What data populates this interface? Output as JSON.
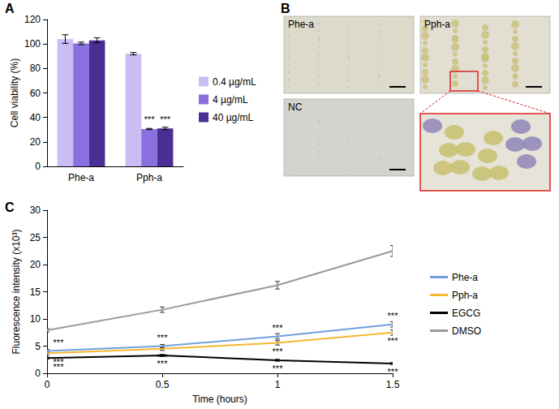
{
  "chart_data": [
    {
      "panel_label": "A",
      "type": "bar",
      "categories": [
        "Phe-a",
        "Pph-a"
      ],
      "y_label": "Cell viability (%)",
      "ylim": [
        0,
        120
      ],
      "yticks": [
        0,
        20,
        40,
        60,
        80,
        100,
        120
      ],
      "grid": false,
      "legend": "right",
      "series": [
        {
          "name": "0.4 µg/mL",
          "color": "#cbbcf3",
          "values": [
            104,
            92
          ],
          "errors": [
            3.5,
            1
          ],
          "significance": [
            null,
            null
          ]
        },
        {
          "name": "4 µg/mL",
          "color": "#8a6fe0",
          "values": [
            100.5,
            30.5
          ],
          "errors": [
            1,
            0.5
          ],
          "significance": [
            null,
            "***"
          ]
        },
        {
          "name": "40 µg/mL",
          "color": "#4a2e94",
          "values": [
            103,
            31
          ],
          "errors": [
            2,
            1
          ],
          "significance": [
            null,
            "***"
          ]
        }
      ]
    },
    {
      "panel_label": "C",
      "type": "line",
      "x_label": "Time (hours)",
      "y_label": "Fluorescence intensity (x10³)",
      "x": [
        0,
        0.5,
        1,
        1.5
      ],
      "xlim": [
        0,
        1.5
      ],
      "xticks": [
        0,
        0.5,
        1,
        1.5
      ],
      "ylim": [
        0,
        30
      ],
      "yticks": [
        0,
        5,
        10,
        15,
        20,
        25,
        30
      ],
      "grid": false,
      "legend": "right",
      "series": [
        {
          "name": "Phe-a",
          "color": "#6fa0dc",
          "values": [
            4.1,
            5.0,
            6.8,
            9.0
          ],
          "errors": [
            0.3,
            0.3,
            0.5,
            0.5
          ],
          "significance": [
            "***",
            "***",
            "***",
            "***"
          ]
        },
        {
          "name": "Pph-a",
          "color": "#f5b731",
          "values": [
            3.7,
            4.5,
            5.6,
            7.5
          ],
          "errors": [
            0.3,
            0.3,
            0.4,
            0.5
          ],
          "significance": [
            "***",
            "***",
            "***",
            "***"
          ]
        },
        {
          "name": "EGCG",
          "color": "#000000",
          "values": [
            2.8,
            3.3,
            2.4,
            1.8
          ],
          "errors": [
            0.2,
            0.2,
            0.2,
            0.2
          ],
          "significance": [
            "***",
            "***",
            "***",
            "***"
          ]
        },
        {
          "name": "DMSO",
          "color": "#999999",
          "values": [
            7.9,
            11.7,
            16.2,
            22.5
          ],
          "errors": [
            0.3,
            0.5,
            0.7,
            1.0
          ],
          "significance": [
            null,
            null,
            null,
            null
          ]
        }
      ]
    }
  ],
  "panel_b": {
    "panel_label": "B",
    "images": [
      "Phe-a",
      "Pph-a",
      "NC"
    ]
  }
}
